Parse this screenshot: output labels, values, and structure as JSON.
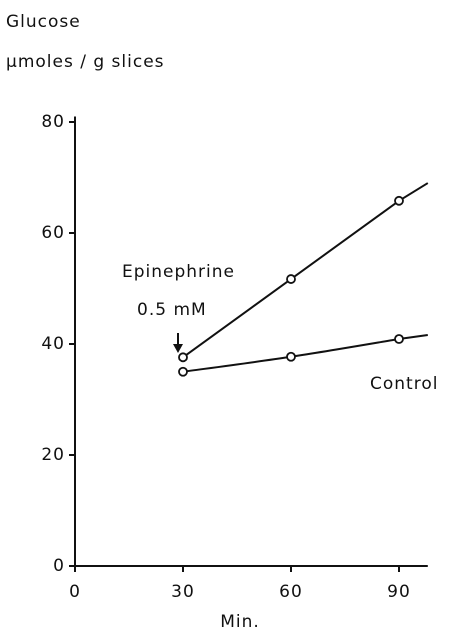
{
  "chart_data": {
    "type": "line",
    "y_label_lines": [
      "Glucose",
      "µmoles / g slices"
    ],
    "x_label": "Min.",
    "x": [
      30,
      60,
      90
    ],
    "series": [
      {
        "name": "Epinephrine",
        "color": "#111111",
        "values": [
          37.6,
          51.7,
          65.8
        ]
      },
      {
        "name": "Control",
        "color": "#111111",
        "values": [
          35,
          37.7,
          40.9
        ]
      }
    ],
    "annotation": "0.5 mM",
    "xlim": [
      0,
      98
    ],
    "ylim": [
      0,
      81
    ],
    "xticks": [
      0,
      30,
      60,
      90
    ],
    "yticks": [
      0,
      20,
      40,
      60,
      80
    ]
  }
}
